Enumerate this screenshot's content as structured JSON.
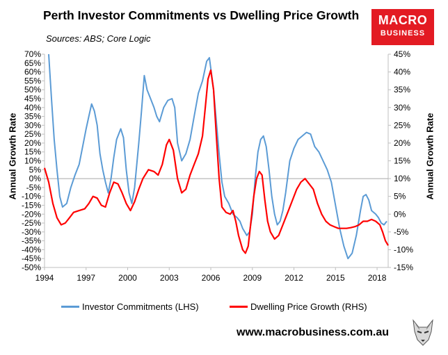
{
  "title": "Perth Investor Commitments vs Dwelling Price Growth",
  "sources": "Sources: ABS; Core Logic",
  "logo": {
    "line1": "MACRO",
    "line2": "BUSINESS"
  },
  "website": "www.macrobusiness.com.au",
  "colors": {
    "series_lhs": "#5b9bd5",
    "series_rhs": "#ff0000",
    "logo_bg": "#e31b23"
  },
  "chart_data": {
    "type": "line",
    "title": "Perth Investor Commitments vs Dwelling Price Growth",
    "ylabel_left": "Annual Growth Rate",
    "ylabel_right": "Annual Growth Rate",
    "x_ticks": [
      "1994",
      "1997",
      "2000",
      "2003",
      "2006",
      "2009",
      "2012",
      "2015",
      "2018"
    ],
    "xlim": [
      1994,
      2018.8
    ],
    "ylim_left": [
      -50,
      70
    ],
    "ylim_right": [
      -15,
      45
    ],
    "y_ticks_left": [
      "70%",
      "65%",
      "60%",
      "55%",
      "50%",
      "45%",
      "40%",
      "35%",
      "30%",
      "25%",
      "20%",
      "15%",
      "10%",
      "5%",
      "0%",
      "-5%",
      "-10%",
      "-15%",
      "-20%",
      "-25%",
      "-30%",
      "-35%",
      "-40%",
      "-45%",
      "-50%"
    ],
    "y_ticks_right": [
      "45%",
      "40%",
      "35%",
      "30%",
      "25%",
      "20%",
      "15%",
      "10%",
      "5%",
      "0%",
      "-5%",
      "-10%",
      "-15%"
    ],
    "legend_position": "bottom",
    "grid": false,
    "series": [
      {
        "name": "Investor Commitments (LHS)",
        "axis": "left",
        "points": [
          [
            1994.3,
            70
          ],
          [
            1994.5,
            45
          ],
          [
            1994.7,
            22
          ],
          [
            1994.9,
            5
          ],
          [
            1995.1,
            -10
          ],
          [
            1995.3,
            -16
          ],
          [
            1995.6,
            -14
          ],
          [
            1995.9,
            -5
          ],
          [
            1996.2,
            2
          ],
          [
            1996.5,
            8
          ],
          [
            1996.8,
            20
          ],
          [
            1997.0,
            28
          ],
          [
            1997.2,
            35
          ],
          [
            1997.4,
            42
          ],
          [
            1997.6,
            38
          ],
          [
            1997.8,
            30
          ],
          [
            1998.0,
            14
          ],
          [
            1998.2,
            5
          ],
          [
            1998.4,
            -2
          ],
          [
            1998.6,
            -8
          ],
          [
            1998.8,
            0
          ],
          [
            1999.0,
            12
          ],
          [
            1999.2,
            22
          ],
          [
            1999.5,
            28
          ],
          [
            1999.7,
            23
          ],
          [
            1999.9,
            5
          ],
          [
            2000.1,
            -8
          ],
          [
            2000.3,
            -14
          ],
          [
            2000.5,
            -5
          ],
          [
            2000.8,
            20
          ],
          [
            2001.0,
            38
          ],
          [
            2001.2,
            58
          ],
          [
            2001.4,
            50
          ],
          [
            2001.6,
            46
          ],
          [
            2001.9,
            40
          ],
          [
            2002.1,
            35
          ],
          [
            2002.3,
            32
          ],
          [
            2002.6,
            40
          ],
          [
            2002.9,
            44
          ],
          [
            2003.2,
            45
          ],
          [
            2003.4,
            40
          ],
          [
            2003.6,
            20
          ],
          [
            2003.9,
            10
          ],
          [
            2004.2,
            14
          ],
          [
            2004.5,
            22
          ],
          [
            2004.8,
            35
          ],
          [
            2005.1,
            48
          ],
          [
            2005.4,
            55
          ],
          [
            2005.7,
            66
          ],
          [
            2005.9,
            68
          ],
          [
            2006.0,
            62
          ],
          [
            2006.2,
            50
          ],
          [
            2006.4,
            32
          ],
          [
            2006.6,
            14
          ],
          [
            2006.8,
            -2
          ],
          [
            2007.0,
            -10
          ],
          [
            2007.3,
            -14
          ],
          [
            2007.6,
            -20
          ],
          [
            2007.9,
            -22
          ],
          [
            2008.1,
            -24
          ],
          [
            2008.3,
            -28
          ],
          [
            2008.6,
            -32
          ],
          [
            2008.8,
            -30
          ],
          [
            2009.0,
            -20
          ],
          [
            2009.2,
            0
          ],
          [
            2009.4,
            15
          ],
          [
            2009.6,
            22
          ],
          [
            2009.8,
            24
          ],
          [
            2010.0,
            18
          ],
          [
            2010.2,
            5
          ],
          [
            2010.4,
            -10
          ],
          [
            2010.6,
            -20
          ],
          [
            2010.8,
            -26
          ],
          [
            2011.0,
            -24
          ],
          [
            2011.2,
            -18
          ],
          [
            2011.4,
            -8
          ],
          [
            2011.7,
            10
          ],
          [
            2012.0,
            17
          ],
          [
            2012.3,
            22
          ],
          [
            2012.6,
            24
          ],
          [
            2012.9,
            26
          ],
          [
            2013.2,
            25
          ],
          [
            2013.5,
            18
          ],
          [
            2013.8,
            15
          ],
          [
            2014.1,
            10
          ],
          [
            2014.4,
            5
          ],
          [
            2014.7,
            -2
          ],
          [
            2015.0,
            -15
          ],
          [
            2015.3,
            -28
          ],
          [
            2015.6,
            -38
          ],
          [
            2015.9,
            -45
          ],
          [
            2016.2,
            -42
          ],
          [
            2016.5,
            -32
          ],
          [
            2016.8,
            -18
          ],
          [
            2017.0,
            -10
          ],
          [
            2017.2,
            -9
          ],
          [
            2017.4,
            -12
          ],
          [
            2017.6,
            -18
          ],
          [
            2017.9,
            -20
          ],
          [
            2018.1,
            -22
          ],
          [
            2018.3,
            -25
          ],
          [
            2018.5,
            -26
          ],
          [
            2018.7,
            -24
          ]
        ]
      },
      {
        "name": "Dwelling Price Growth (RHS)",
        "axis": "right",
        "points": [
          [
            1994.0,
            13
          ],
          [
            1994.3,
            9
          ],
          [
            1994.6,
            3
          ],
          [
            1994.9,
            -1
          ],
          [
            1995.2,
            -3
          ],
          [
            1995.5,
            -2.5
          ],
          [
            1995.8,
            -1
          ],
          [
            1996.1,
            0.5
          ],
          [
            1996.5,
            1
          ],
          [
            1996.9,
            1.5
          ],
          [
            1997.2,
            3
          ],
          [
            1997.5,
            5
          ],
          [
            1997.8,
            4.5
          ],
          [
            1998.1,
            2.5
          ],
          [
            1998.4,
            2
          ],
          [
            1998.7,
            6
          ],
          [
            1999.0,
            9
          ],
          [
            1999.3,
            8.5
          ],
          [
            1999.6,
            6
          ],
          [
            1999.9,
            3
          ],
          [
            2000.2,
            1
          ],
          [
            2000.5,
            3.5
          ],
          [
            2000.8,
            7
          ],
          [
            2001.1,
            10
          ],
          [
            2001.5,
            12.5
          ],
          [
            2001.9,
            12
          ],
          [
            2002.2,
            11
          ],
          [
            2002.5,
            14
          ],
          [
            2002.8,
            19.5
          ],
          [
            2003.0,
            21
          ],
          [
            2003.3,
            18
          ],
          [
            2003.6,
            10
          ],
          [
            2003.9,
            6
          ],
          [
            2004.2,
            7
          ],
          [
            2004.5,
            11
          ],
          [
            2004.8,
            14
          ],
          [
            2005.1,
            17
          ],
          [
            2005.4,
            22
          ],
          [
            2005.6,
            30
          ],
          [
            2005.8,
            38
          ],
          [
            2006.0,
            40.5
          ],
          [
            2006.2,
            35
          ],
          [
            2006.4,
            22
          ],
          [
            2006.6,
            10
          ],
          [
            2006.8,
            2
          ],
          [
            2007.1,
            0.5
          ],
          [
            2007.4,
            0
          ],
          [
            2007.6,
            1
          ],
          [
            2007.8,
            -2
          ],
          [
            2008.0,
            -6
          ],
          [
            2008.3,
            -10
          ],
          [
            2008.5,
            -11
          ],
          [
            2008.7,
            -9
          ],
          [
            2008.9,
            -2
          ],
          [
            2009.1,
            5
          ],
          [
            2009.3,
            10
          ],
          [
            2009.5,
            12
          ],
          [
            2009.7,
            11
          ],
          [
            2009.9,
            4
          ],
          [
            2010.1,
            -2
          ],
          [
            2010.3,
            -5
          ],
          [
            2010.6,
            -7
          ],
          [
            2010.9,
            -6
          ],
          [
            2011.2,
            -3
          ],
          [
            2011.5,
            0
          ],
          [
            2011.8,
            3
          ],
          [
            2012.2,
            7
          ],
          [
            2012.5,
            9
          ],
          [
            2012.8,
            10
          ],
          [
            2013.1,
            8.5
          ],
          [
            2013.4,
            7
          ],
          [
            2013.7,
            3
          ],
          [
            2014.0,
            0
          ],
          [
            2014.3,
            -2
          ],
          [
            2014.6,
            -3
          ],
          [
            2014.9,
            -3.5
          ],
          [
            2015.2,
            -4
          ],
          [
            2015.5,
            -4
          ],
          [
            2015.8,
            -4
          ],
          [
            2016.1,
            -3.8
          ],
          [
            2016.4,
            -3.5
          ],
          [
            2016.7,
            -3
          ],
          [
            2017.0,
            -2
          ],
          [
            2017.3,
            -2
          ],
          [
            2017.6,
            -1.5
          ],
          [
            2017.9,
            -2
          ],
          [
            2018.2,
            -3
          ],
          [
            2018.4,
            -5
          ],
          [
            2018.6,
            -7.5
          ],
          [
            2018.8,
            -8.8
          ]
        ]
      }
    ]
  }
}
